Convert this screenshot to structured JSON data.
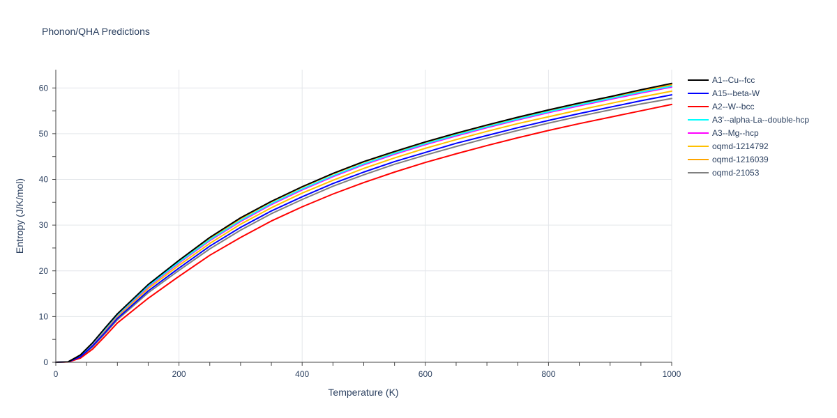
{
  "chart_data": {
    "type": "line",
    "title": "Phonon/QHA Predictions",
    "xlabel": "Temperature (K)",
    "ylabel": "Entropy (J/K/mol)",
    "xlim": [
      0,
      1000
    ],
    "ylim": [
      0,
      64
    ],
    "x_ticks": [
      0,
      200,
      400,
      600,
      800,
      1000
    ],
    "y_ticks": [
      0,
      10,
      20,
      30,
      40,
      50,
      60
    ],
    "grid": true,
    "legend_position": "right",
    "x": [
      0,
      20,
      40,
      60,
      80,
      100,
      150,
      200,
      250,
      300,
      350,
      400,
      450,
      500,
      550,
      600,
      650,
      700,
      750,
      800,
      850,
      900,
      950,
      1000
    ],
    "series": [
      {
        "name": "A1--Cu--fcc",
        "color": "#000000",
        "values": [
          0,
          0.1,
          1.6,
          4.3,
          7.5,
          10.6,
          17.0,
          22.3,
          27.3,
          31.6,
          35.2,
          38.4,
          41.3,
          43.9,
          46.1,
          48.2,
          50.1,
          51.9,
          53.6,
          55.2,
          56.7,
          58.1,
          59.6,
          61.0
        ]
      },
      {
        "name": "A15--beta-W",
        "color": "#0000ff",
        "values": [
          0,
          0.1,
          1.2,
          3.6,
          6.5,
          9.6,
          15.6,
          20.6,
          25.4,
          29.5,
          33.1,
          36.2,
          39.1,
          41.6,
          43.9,
          45.9,
          47.9,
          49.6,
          51.3,
          52.9,
          54.4,
          55.8,
          57.2,
          58.5
        ]
      },
      {
        "name": "A2--W--bcc",
        "color": "#ff0000",
        "values": [
          0,
          0.05,
          0.9,
          2.9,
          5.7,
          8.6,
          14.0,
          18.8,
          23.4,
          27.3,
          30.9,
          34.0,
          36.8,
          39.3,
          41.6,
          43.7,
          45.6,
          47.4,
          49.1,
          50.7,
          52.2,
          53.6,
          55.0,
          56.4
        ]
      },
      {
        "name": "A3'--alpha-La--double-hcp",
        "color": "#00ffff",
        "values": [
          0,
          0.1,
          1.5,
          4.2,
          7.3,
          10.4,
          16.7,
          21.9,
          26.8,
          31.0,
          34.7,
          37.9,
          40.8,
          43.4,
          45.7,
          47.8,
          49.7,
          51.5,
          53.2,
          54.8,
          56.3,
          57.7,
          59.1,
          60.4
        ]
      },
      {
        "name": "A3--Mg--hcp",
        "color": "#ff00ff",
        "values": [
          0,
          0.1,
          1.5,
          4.1,
          7.2,
          10.3,
          16.5,
          21.7,
          26.6,
          30.8,
          34.5,
          37.7,
          40.6,
          43.2,
          45.5,
          47.6,
          49.5,
          51.3,
          53.0,
          54.6,
          56.1,
          57.5,
          58.9,
          60.2
        ]
      },
      {
        "name": "oqmd-1214792",
        "color": "#ffc000",
        "values": [
          0,
          0.1,
          1.4,
          3.9,
          6.9,
          10.0,
          16.1,
          21.2,
          26.0,
          30.2,
          33.8,
          37.0,
          39.8,
          42.4,
          44.7,
          46.8,
          48.7,
          50.5,
          52.2,
          53.7,
          55.2,
          56.6,
          58.0,
          59.3
        ]
      },
      {
        "name": "oqmd-1216039",
        "color": "#ffa500",
        "values": [
          0,
          0.1,
          1.6,
          4.3,
          7.4,
          10.5,
          16.9,
          22.1,
          27.1,
          31.4,
          35.1,
          38.3,
          41.2,
          43.8,
          46.0,
          48.1,
          50.0,
          51.8,
          53.5,
          55.1,
          56.6,
          58.0,
          59.4,
          60.7
        ]
      },
      {
        "name": "oqmd-21053",
        "color": "#808080",
        "values": [
          0,
          0.1,
          1.1,
          3.4,
          6.3,
          9.3,
          15.2,
          20.1,
          24.8,
          28.9,
          32.5,
          35.6,
          38.5,
          41.0,
          43.3,
          45.3,
          47.2,
          49.0,
          50.7,
          52.3,
          53.8,
          55.2,
          56.5,
          57.7
        ]
      }
    ]
  }
}
